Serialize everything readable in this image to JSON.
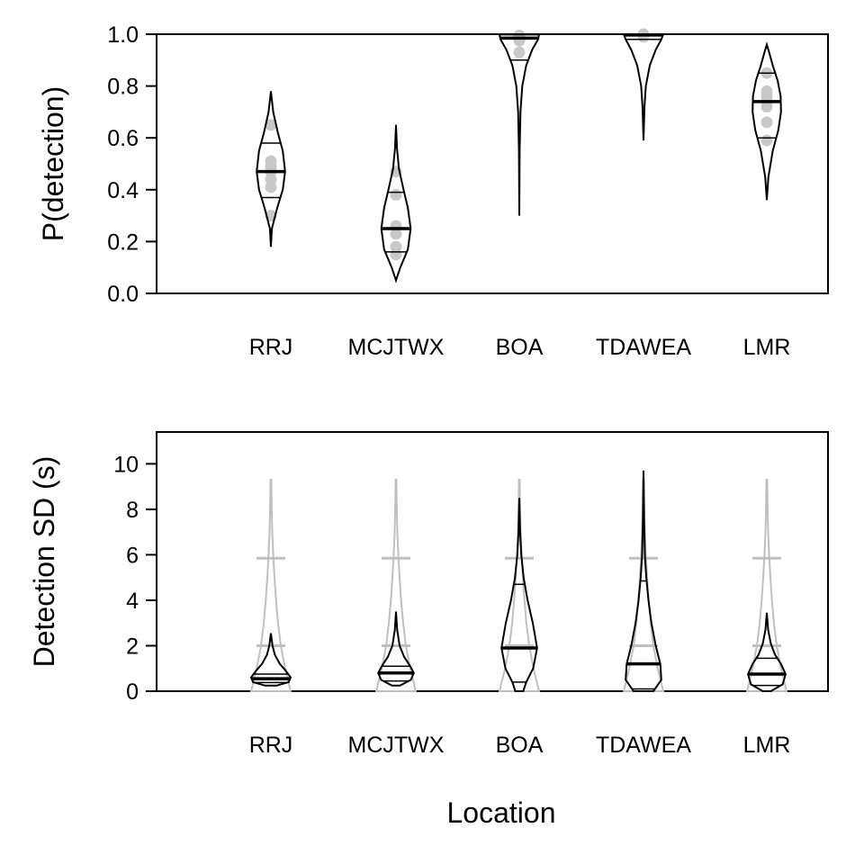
{
  "chart_data": [
    {
      "type": "violin",
      "ylabel": "P(detection)",
      "ylim": [
        0,
        1
      ],
      "yticks": [
        "0.0",
        "0.2",
        "0.4",
        "0.6",
        "0.8",
        "1.0"
      ],
      "yticks_values": [
        0,
        0.2,
        0.4,
        0.6,
        0.8,
        1.0
      ],
      "categories": [
        "RRJ",
        "MCJTWX",
        "BOA",
        "TDAWEA",
        "LMR"
      ],
      "distributions": [
        {
          "category": "RRJ",
          "min": 0.18,
          "max": 0.78,
          "lower": 0.37,
          "median": 0.47,
          "upper": 0.58,
          "shape": [
            [
              0.18,
              0
            ],
            [
              0.25,
              0.05
            ],
            [
              0.33,
              0.32
            ],
            [
              0.4,
              0.6
            ],
            [
              0.47,
              0.72
            ],
            [
              0.55,
              0.6
            ],
            [
              0.62,
              0.35
            ],
            [
              0.7,
              0.12
            ],
            [
              0.78,
              0
            ]
          ],
          "points": [
            0.3,
            0.41,
            0.44,
            0.47,
            0.49,
            0.51,
            0.65
          ]
        },
        {
          "category": "MCJTWX",
          "min": 0.05,
          "max": 0.65,
          "lower": 0.16,
          "median": 0.25,
          "upper": 0.39,
          "shape": [
            [
              0.05,
              0
            ],
            [
              0.1,
              0.22
            ],
            [
              0.17,
              0.6
            ],
            [
              0.25,
              0.74
            ],
            [
              0.33,
              0.6
            ],
            [
              0.4,
              0.38
            ],
            [
              0.48,
              0.15
            ],
            [
              0.56,
              0.05
            ],
            [
              0.65,
              0
            ]
          ],
          "points": [
            0.15,
            0.18,
            0.23,
            0.26,
            0.38,
            0.47
          ]
        },
        {
          "category": "BOA",
          "min": 0.3,
          "max": 1.0,
          "lower": 0.9,
          "median": 0.985,
          "upper": 0.998,
          "shape": [
            [
              0.3,
              0
            ],
            [
              0.55,
              0.02
            ],
            [
              0.7,
              0.06
            ],
            [
              0.8,
              0.15
            ],
            [
              0.88,
              0.35
            ],
            [
              0.94,
              0.65
            ],
            [
              0.98,
              0.95
            ],
            [
              1.0,
              1.0
            ]
          ],
          "points": [
            0.93,
            0.975,
            0.985,
            0.99,
            0.995
          ]
        },
        {
          "category": "TDAWEA",
          "min": 0.59,
          "max": 1.0,
          "lower": 0.98,
          "median": 0.997,
          "upper": 1.0,
          "shape": [
            [
              0.59,
              0
            ],
            [
              0.72,
              0.05
            ],
            [
              0.8,
              0.12
            ],
            [
              0.88,
              0.32
            ],
            [
              0.94,
              0.62
            ],
            [
              0.98,
              0.9
            ],
            [
              1.0,
              1.0
            ]
          ],
          "points": [
            0.99,
            0.995,
            1.0
          ]
        },
        {
          "category": "LMR",
          "min": 0.36,
          "max": 0.96,
          "lower": 0.6,
          "median": 0.74,
          "upper": 0.85,
          "shape": [
            [
              0.36,
              0
            ],
            [
              0.45,
              0.08
            ],
            [
              0.55,
              0.3
            ],
            [
              0.63,
              0.58
            ],
            [
              0.7,
              0.72
            ],
            [
              0.76,
              0.7
            ],
            [
              0.82,
              0.55
            ],
            [
              0.88,
              0.3
            ],
            [
              0.93,
              0.12
            ],
            [
              0.96,
              0
            ]
          ],
          "points": [
            0.59,
            0.66,
            0.72,
            0.74,
            0.76,
            0.78,
            0.85
          ]
        }
      ]
    },
    {
      "type": "violin",
      "ylabel": "Detection SD (s)",
      "xlabel": "Location",
      "ylim": [
        0,
        11.4
      ],
      "yticks": [
        "0",
        "2",
        "4",
        "6",
        "8",
        "10"
      ],
      "yticks_values": [
        0,
        2,
        4,
        6,
        8,
        10
      ],
      "categories": [
        "RRJ",
        "MCJTWX",
        "BOA",
        "TDAWEA",
        "LMR"
      ],
      "prior": {
        "min": 0,
        "max": 9.3,
        "lower": 2.0,
        "upper": 5.85,
        "shape": [
          [
            0,
            1.0
          ],
          [
            1.0,
            0.72
          ],
          [
            2.0,
            0.5
          ],
          [
            3.0,
            0.36
          ],
          [
            4.0,
            0.26
          ],
          [
            5.0,
            0.18
          ],
          [
            6.0,
            0.12
          ],
          [
            7.0,
            0.07
          ],
          [
            8.0,
            0.04
          ],
          [
            9.3,
            0.02
          ]
        ]
      },
      "distributions": [
        {
          "category": "RRJ",
          "min": 0.25,
          "max": 2.55,
          "lower": 0.38,
          "median": 0.55,
          "upper": 0.75,
          "shape": [
            [
              0.25,
              0.3
            ],
            [
              0.4,
              0.9
            ],
            [
              0.6,
              1.0
            ],
            [
              0.9,
              0.75
            ],
            [
              1.2,
              0.45
            ],
            [
              1.6,
              0.2
            ],
            [
              2.0,
              0.08
            ],
            [
              2.55,
              0
            ]
          ]
        },
        {
          "category": "MCJTWX",
          "min": 0.25,
          "max": 3.5,
          "lower": 0.45,
          "median": 0.8,
          "upper": 1.1,
          "shape": [
            [
              0.25,
              0.2
            ],
            [
              0.5,
              0.75
            ],
            [
              0.8,
              0.9
            ],
            [
              1.1,
              0.72
            ],
            [
              1.5,
              0.42
            ],
            [
              2.0,
              0.18
            ],
            [
              2.7,
              0.06
            ],
            [
              3.5,
              0
            ]
          ]
        },
        {
          "category": "BOA",
          "min": 0,
          "max": 8.5,
          "lower": 0.4,
          "median": 1.9,
          "upper": 4.7,
          "shape": [
            [
              0,
              0.2
            ],
            [
              0.4,
              0.35
            ],
            [
              1.0,
              0.7
            ],
            [
              1.9,
              0.9
            ],
            [
              3.0,
              0.68
            ],
            [
              4.0,
              0.42
            ],
            [
              5.0,
              0.22
            ],
            [
              6.0,
              0.1
            ],
            [
              7.0,
              0.04
            ],
            [
              8.5,
              0
            ]
          ]
        },
        {
          "category": "TDAWEA",
          "min": 0,
          "max": 9.7,
          "lower": 0.1,
          "median": 1.2,
          "upper": 4.85,
          "shape": [
            [
              0,
              0.5
            ],
            [
              0.5,
              0.9
            ],
            [
              1.2,
              0.85
            ],
            [
              2.0,
              0.62
            ],
            [
              3.0,
              0.4
            ],
            [
              4.0,
              0.25
            ],
            [
              5.0,
              0.14
            ],
            [
              6.0,
              0.07
            ],
            [
              7.5,
              0.03
            ],
            [
              9.7,
              0
            ]
          ]
        },
        {
          "category": "LMR",
          "min": 0,
          "max": 3.45,
          "lower": 0.25,
          "median": 0.75,
          "upper": 1.45,
          "shape": [
            [
              0,
              0.2
            ],
            [
              0.3,
              0.8
            ],
            [
              0.75,
              0.95
            ],
            [
              1.2,
              0.72
            ],
            [
              1.6,
              0.42
            ],
            [
              2.1,
              0.2
            ],
            [
              2.7,
              0.07
            ],
            [
              3.45,
              0
            ]
          ]
        }
      ]
    }
  ],
  "colors": {
    "posterior": "#000000",
    "prior": "#bfbfbf",
    "points": "#c8c8c8"
  }
}
